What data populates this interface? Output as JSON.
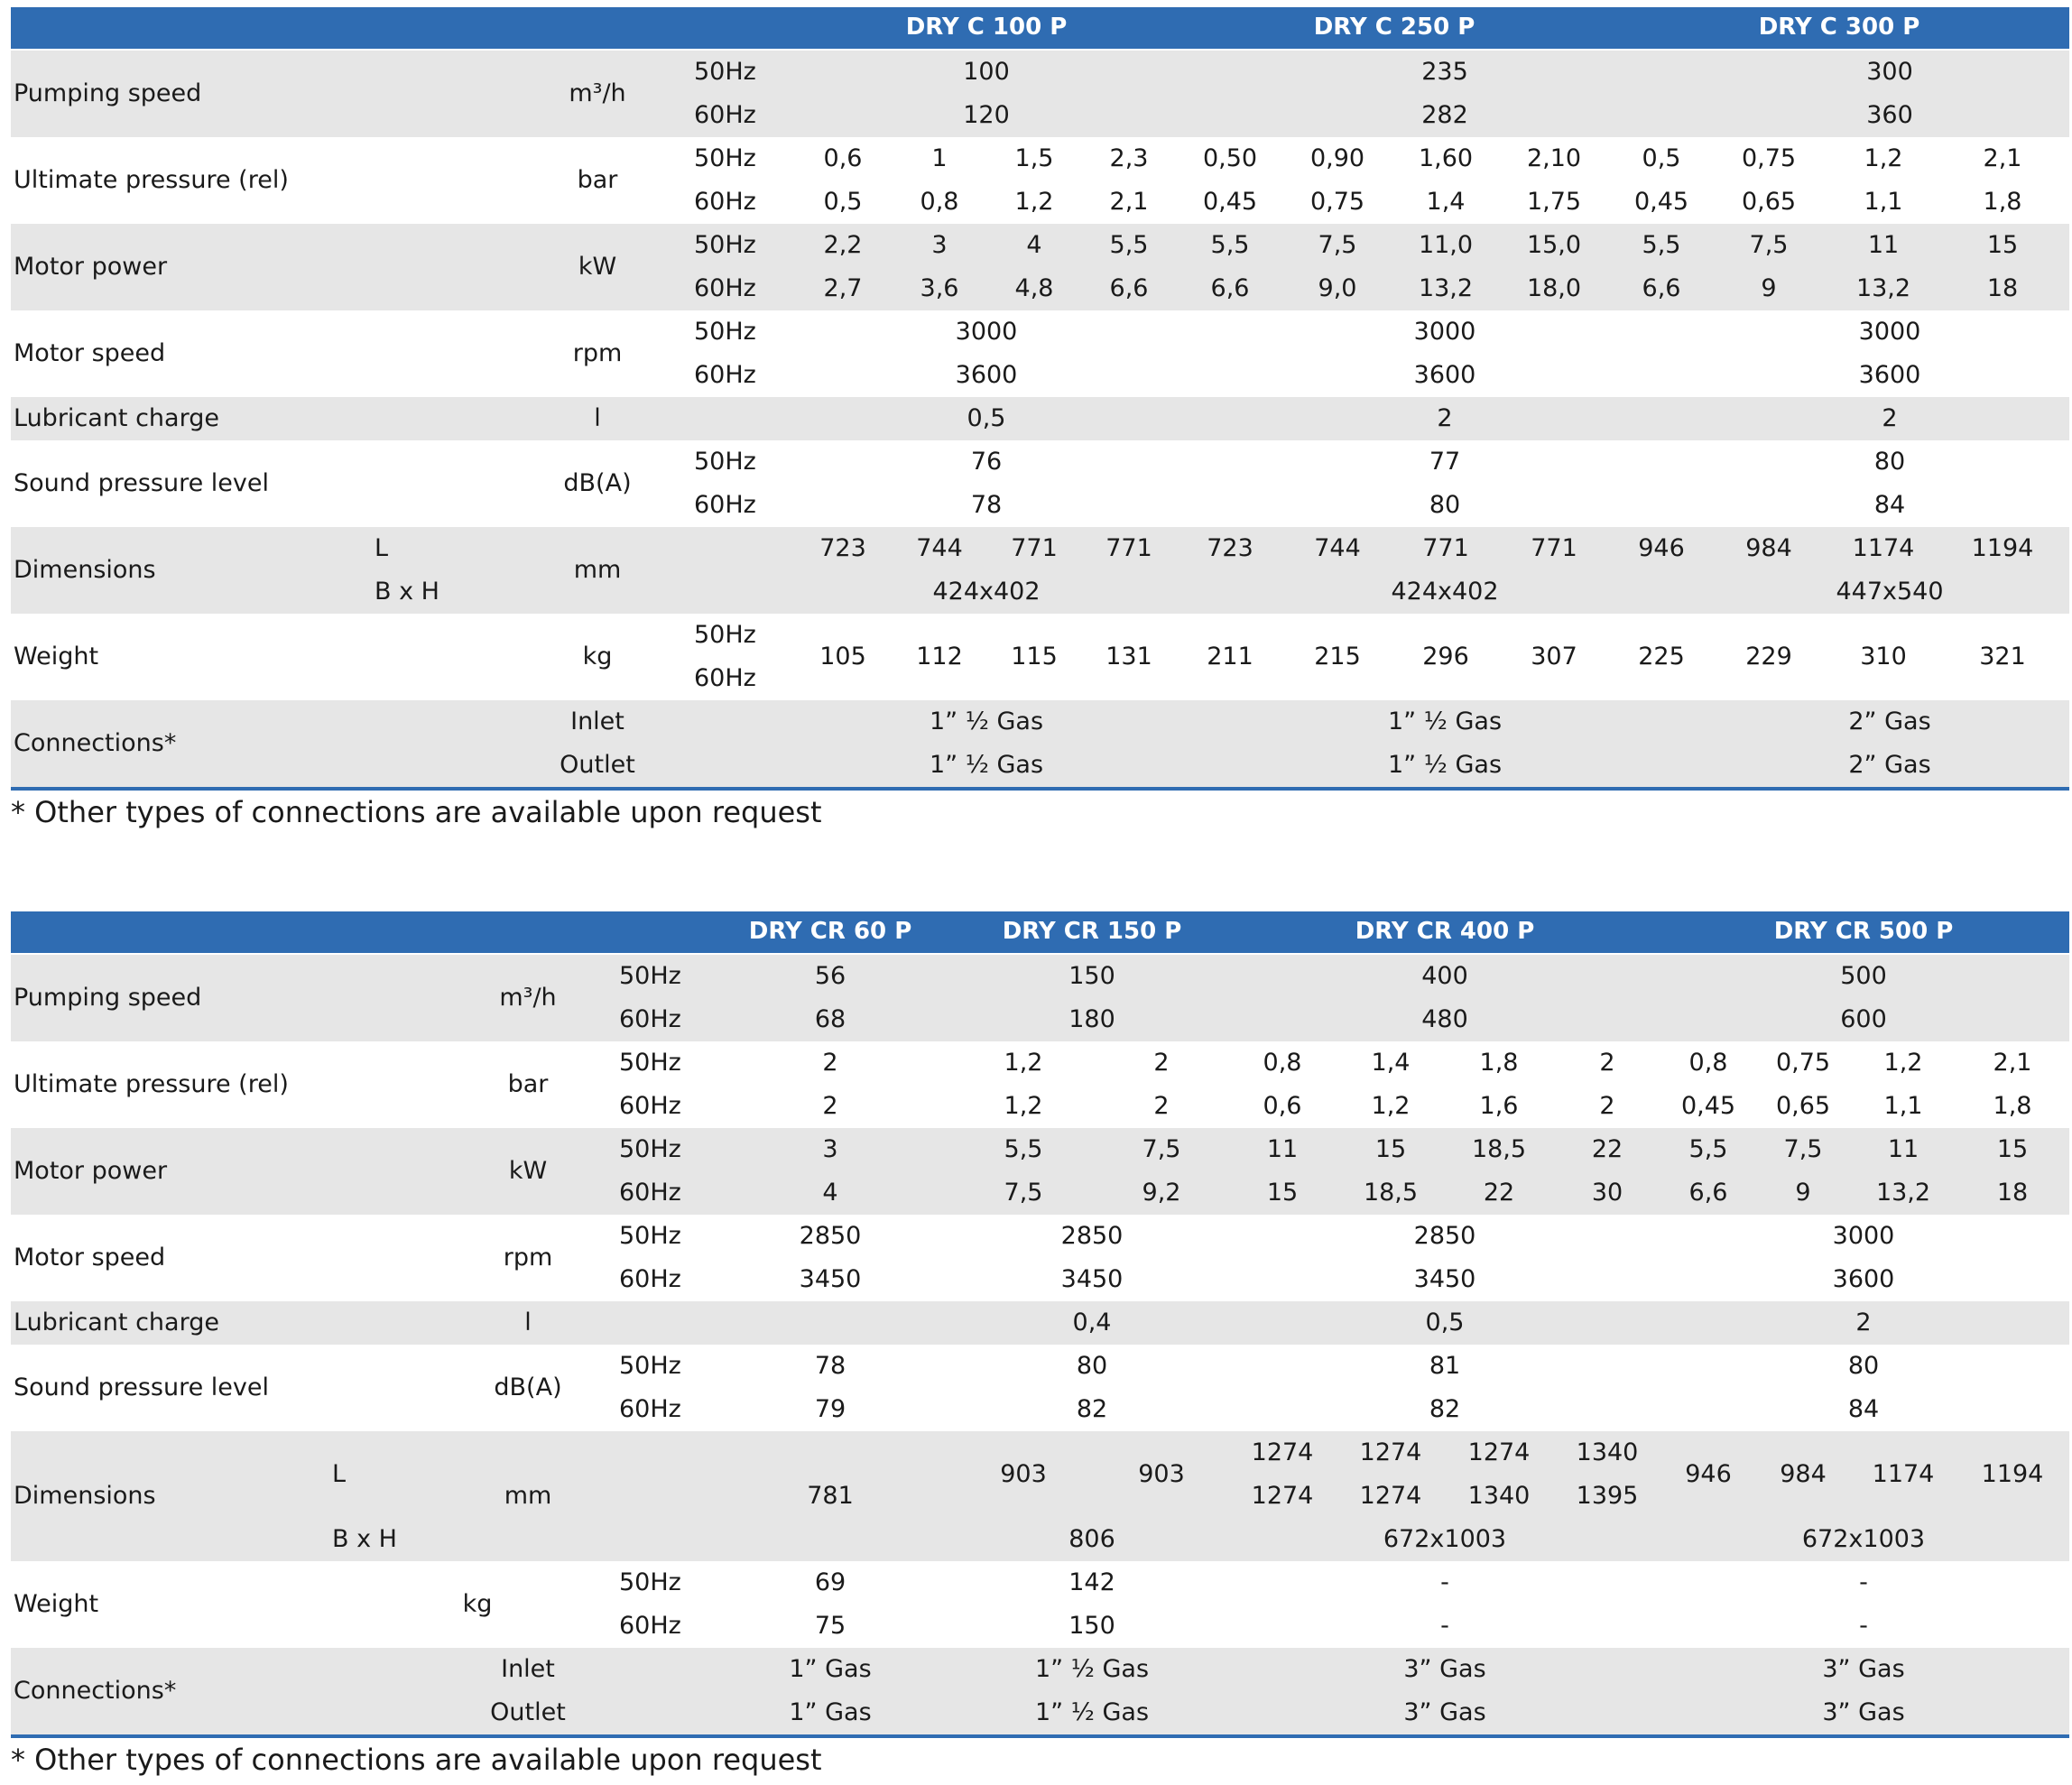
{
  "table1": {
    "models": [
      "DRY C 100 P",
      "DRY C 250 P",
      "DRY C 300 P"
    ],
    "rows": {
      "pumping": {
        "label": "Pumping speed",
        "unit": "m³/h",
        "f1": "50Hz",
        "f2": "60Hz",
        "v50": [
          "100",
          "235",
          "300"
        ],
        "v60": [
          "120",
          "282",
          "360"
        ]
      },
      "ultimate": {
        "label": "Ultimate pressure (rel)",
        "unit": "bar",
        "f1": "50Hz",
        "f2": "60Hz",
        "v50": [
          "0,6",
          "1",
          "1,5",
          "2,3",
          "0,50",
          "0,90",
          "1,60",
          "2,10",
          "0,5",
          "0,75",
          "1,2",
          "2,1"
        ],
        "v60": [
          "0,5",
          "0,8",
          "1,2",
          "2,1",
          "0,45",
          "0,75",
          "1,4",
          "1,75",
          "0,45",
          "0,65",
          "1,1",
          "1,8"
        ]
      },
      "power": {
        "label": "Motor power",
        "unit": "kW",
        "f1": "50Hz",
        "f2": "60Hz",
        "v50": [
          "2,2",
          "3",
          "4",
          "5,5",
          "5,5",
          "7,5",
          "11,0",
          "15,0",
          "5,5",
          "7,5",
          "11",
          "15"
        ],
        "v60": [
          "2,7",
          "3,6",
          "4,8",
          "6,6",
          "6,6",
          "9,0",
          "13,2",
          "18,0",
          "6,6",
          "9",
          "13,2",
          "18"
        ]
      },
      "speed": {
        "label": "Motor speed",
        "unit": "rpm",
        "f1": "50Hz",
        "f2": "60Hz",
        "v50": [
          "3000",
          "3000",
          "3000"
        ],
        "v60": [
          "3600",
          "3600",
          "3600"
        ]
      },
      "lube": {
        "label": "Lubricant charge",
        "unit": "l",
        "v": [
          "0,5",
          "2",
          "2"
        ]
      },
      "sound": {
        "label": "Sound pressure level",
        "unit": "dB(A)",
        "f1": "50Hz",
        "f2": "60Hz",
        "v50": [
          "76",
          "77",
          "80"
        ],
        "v60": [
          "78",
          "80",
          "84"
        ]
      },
      "dims": {
        "label": "Dimensions",
        "unit": "mm",
        "l": "L",
        "bh": "B x H",
        "vl": [
          "723",
          "744",
          "771",
          "771",
          "723",
          "744",
          "771",
          "771",
          "946",
          "984",
          "1174",
          "1194"
        ],
        "vbh": [
          "424x402",
          "424x402",
          "447x540"
        ]
      },
      "weight": {
        "label": "Weight",
        "unit": "kg",
        "f1": "50Hz",
        "f2": "60Hz",
        "v": [
          "105",
          "112",
          "115",
          "131",
          "211",
          "215",
          "296",
          "307",
          "225",
          "229",
          "310",
          "321"
        ]
      },
      "conn": {
        "label": "Connections*",
        "inlet": "Inlet",
        "outlet": "Outlet",
        "vi": [
          "1” ½ Gas",
          "1” ½ Gas",
          "2” Gas"
        ],
        "vo": [
          "1” ½ Gas",
          "1” ½ Gas",
          "2” Gas"
        ]
      }
    },
    "note": "* Other types of connections are available upon request"
  },
  "table2": {
    "models": [
      "DRY CR 60 P",
      "DRY CR 150 P",
      "DRY CR 400 P",
      "DRY CR 500 P"
    ],
    "rows": {
      "pumping": {
        "label": "Pumping speed",
        "unit": "m³/h",
        "f1": "50Hz",
        "f2": "60Hz",
        "v50": [
          "56",
          "150",
          "400",
          "500"
        ],
        "v60": [
          "68",
          "180",
          "480",
          "600"
        ]
      },
      "ultimate": {
        "label": "Ultimate pressure (rel)",
        "unit": "bar",
        "f1": "50Hz",
        "f2": "60Hz",
        "v50": [
          "2",
          "1,2",
          "2",
          "0,8",
          "1,4",
          "1,8",
          "2",
          "0,8",
          "0,75",
          "1,2",
          "2,1"
        ],
        "v60": [
          "2",
          "1,2",
          "2",
          "0,6",
          "1,2",
          "1,6",
          "2",
          "0,45",
          "0,65",
          "1,1",
          "1,8"
        ]
      },
      "power": {
        "label": "Motor power",
        "unit": "kW",
        "f1": "50Hz",
        "f2": "60Hz",
        "v50": [
          "3",
          "5,5",
          "7,5",
          "11",
          "15",
          "18,5",
          "22",
          "5,5",
          "7,5",
          "11",
          "15"
        ],
        "v60": [
          "4",
          "7,5",
          "9,2",
          "15",
          "18,5",
          "22",
          "30",
          "6,6",
          "9",
          "13,2",
          "18"
        ]
      },
      "speed": {
        "label": "Motor speed",
        "unit": "rpm",
        "f1": "50Hz",
        "f2": "60Hz",
        "v50": [
          "2850",
          "2850",
          "2850",
          "3000"
        ],
        "v60": [
          "3450",
          "3450",
          "3450",
          "3600"
        ]
      },
      "lube": {
        "label": "Lubricant charge",
        "unit": "l",
        "v": [
          "0,4",
          "0,5",
          "2"
        ]
      },
      "sound": {
        "label": "Sound pressure level",
        "unit": "dB(A)",
        "f1": "50Hz",
        "f2": "60Hz",
        "v50": [
          "78",
          "80",
          "81",
          "80"
        ],
        "v60": [
          "79",
          "82",
          "82",
          "84"
        ]
      },
      "dims": {
        "label": "Dimensions",
        "unit": "mm",
        "l": "L",
        "bh": "B x H",
        "l60": "781",
        "l150": [
          "903",
          "903"
        ],
        "l400a": [
          "1274",
          "1274",
          "1274",
          "1340"
        ],
        "l400b": [
          "1274",
          "1274",
          "1340",
          "1395"
        ],
        "l500": [
          "946",
          "984",
          "1174",
          "1194"
        ],
        "vbh": [
          "806",
          "672x1003",
          "672x1003"
        ]
      },
      "weight": {
        "label": "Weight",
        "unit": "kg",
        "f1": "50Hz",
        "f2": "60Hz",
        "v50": [
          "69",
          "142",
          "-",
          "-"
        ],
        "v60": [
          "75",
          "150",
          "-",
          "-"
        ]
      },
      "conn": {
        "label": "Connections*",
        "inlet": "Inlet",
        "outlet": "Outlet",
        "vi": [
          "1” Gas",
          "1” ½ Gas",
          "3” Gas",
          "3” Gas"
        ],
        "vo": [
          "1” Gas",
          "1” ½ Gas",
          "3” Gas",
          "3” Gas"
        ]
      }
    },
    "note": "* Other types of connections are available upon request"
  }
}
